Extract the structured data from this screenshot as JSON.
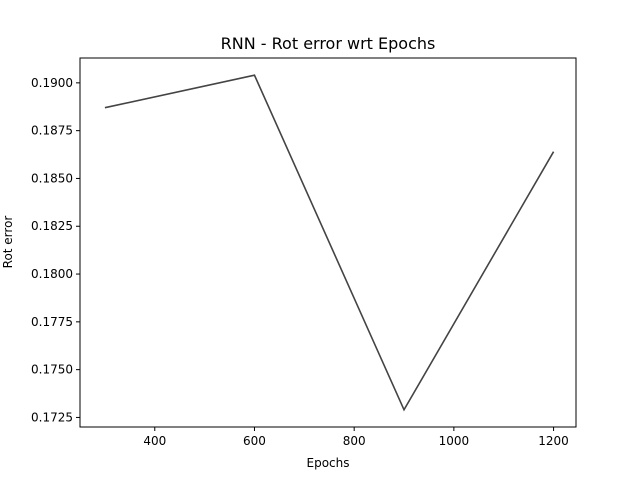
{
  "chart_data": {
    "type": "line",
    "title": "RNN - Rot error wrt Epochs",
    "xlabel": "Epochs",
    "ylabel": "Rot error",
    "xlim": [
      250,
      1245
    ],
    "ylim": [
      0.172,
      0.1913
    ],
    "xticks": [
      400,
      600,
      800,
      1000,
      1200
    ],
    "yticks": [
      0.1725,
      0.175,
      0.1775,
      0.18,
      0.1825,
      0.185,
      0.1875,
      0.19
    ],
    "xtick_labels": [
      "400",
      "600",
      "800",
      "1000",
      "1200"
    ],
    "ytick_labels": [
      "0.1725",
      "0.1750",
      "0.1775",
      "0.1800",
      "0.1825",
      "0.1850",
      "0.1875",
      "0.1900"
    ],
    "series": [
      {
        "x": [
          300,
          600,
          900,
          1200
        ],
        "y": [
          0.1887,
          0.1904,
          0.1729,
          0.1864
        ],
        "color": "#444444"
      }
    ],
    "grid": false,
    "legend": "none"
  }
}
